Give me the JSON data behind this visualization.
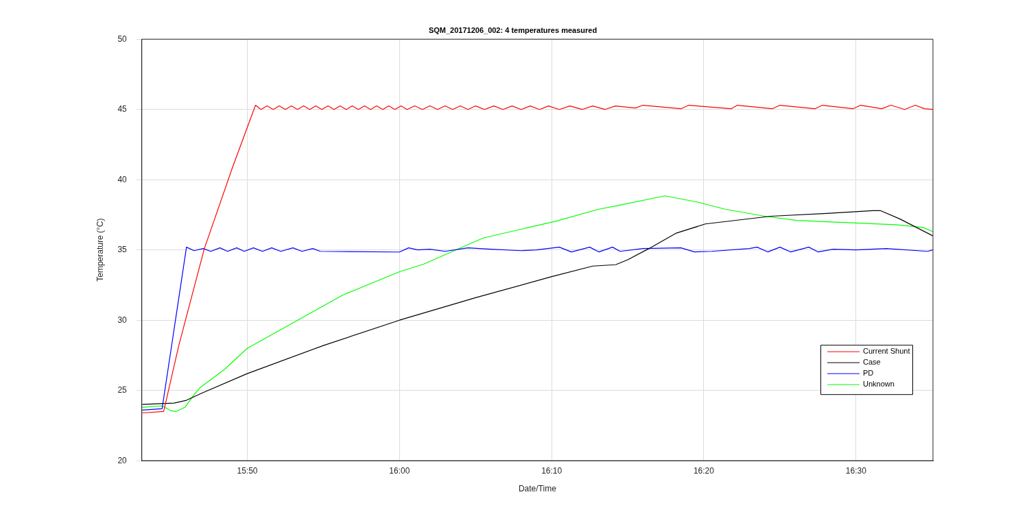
{
  "chart_data": {
    "type": "line",
    "title": "SQM_20171206_002: 4 temperatures measured",
    "xlabel": "Date/Time",
    "ylabel": "Temperature (°C)",
    "xlim": [
      15.7178,
      16.5843
    ],
    "xticks": [
      {
        "value": 15.8333,
        "label": "15:50"
      },
      {
        "value": 16,
        "label": "16:00"
      },
      {
        "value": 16.1667,
        "label": "16:10"
      },
      {
        "value": 16.3333,
        "label": "16:20"
      },
      {
        "value": 16.5,
        "label": "16:30"
      }
    ],
    "ylim": [
      20,
      50
    ],
    "yticks": [
      20,
      25,
      30,
      35,
      40,
      45,
      50
    ],
    "grid": true,
    "legend": "bottom right",
    "marker": "none",
    "line_style": "solid",
    "series": [
      {
        "name": "Current Shunt",
        "color": "#ff0000",
        "x": [
          15.7183,
          15.7417,
          15.7583,
          15.7863,
          15.8167,
          15.8423,
          15.8483,
          15.855,
          15.8617,
          15.8683,
          15.875,
          15.8817,
          15.8883,
          15.895,
          15.9017,
          15.9083,
          15.915,
          15.9217,
          15.9283,
          15.935,
          15.9417,
          15.9483,
          15.955,
          15.9617,
          15.9683,
          15.975,
          15.9817,
          15.9883,
          15.995,
          16.0017,
          16.0083,
          16.0167,
          16.025,
          16.0333,
          16.0417,
          16.05,
          16.0583,
          16.0667,
          16.075,
          16.0833,
          16.0933,
          16.1033,
          16.1133,
          16.1233,
          16.1333,
          16.1433,
          16.1533,
          16.1633,
          16.175,
          16.1867,
          16.2,
          16.2117,
          16.225,
          16.2367,
          16.2583,
          16.2667,
          16.3083,
          16.3167,
          16.3633,
          16.37,
          16.4083,
          16.4167,
          16.455,
          16.4633,
          16.4967,
          16.505,
          16.5283,
          16.5383,
          16.5533,
          16.565,
          16.575,
          16.5842
        ],
        "values": [
          23.4,
          23.5,
          28.2,
          35.1,
          40.8,
          45.3,
          45.0,
          45.25,
          45.0,
          45.25,
          45.0,
          45.25,
          45.0,
          45.25,
          45.0,
          45.25,
          45.0,
          45.25,
          45.0,
          45.25,
          45.0,
          45.25,
          45.0,
          45.25,
          45.0,
          45.25,
          45.0,
          45.25,
          45.0,
          45.25,
          45.0,
          45.25,
          45.0,
          45.25,
          45.0,
          45.25,
          45.0,
          45.25,
          45.0,
          45.25,
          45.0,
          45.25,
          45.0,
          45.25,
          45.0,
          45.25,
          45.0,
          45.25,
          45.0,
          45.25,
          45.0,
          45.25,
          45.0,
          45.25,
          45.1,
          45.3,
          45.05,
          45.3,
          45.05,
          45.3,
          45.05,
          45.3,
          45.05,
          45.3,
          45.05,
          45.3,
          45.05,
          45.3,
          45.0,
          45.3,
          45.05,
          45.0
        ]
      },
      {
        "name": "Case",
        "color": "#000000",
        "x": [
          15.7183,
          15.7533,
          15.7667,
          15.7833,
          15.8333,
          15.9167,
          16.0,
          16.0833,
          16.1667,
          16.2117,
          16.2367,
          16.25,
          16.2733,
          16.3033,
          16.335,
          16.4067,
          16.4683,
          16.5183,
          16.5267,
          16.5483,
          16.5842
        ],
        "values": [
          24.0,
          24.1,
          24.3,
          24.8,
          26.2,
          28.2,
          30.0,
          31.6,
          33.1,
          33.85,
          33.95,
          34.3,
          35.1,
          36.2,
          36.85,
          37.4,
          37.6,
          37.8,
          37.8,
          37.2,
          36.0
        ]
      },
      {
        "name": "PD",
        "color": "#0000ff",
        "x": [
          15.7183,
          15.74,
          15.7667,
          15.775,
          15.785,
          15.7933,
          15.8033,
          15.8117,
          15.8217,
          15.83,
          15.84,
          15.85,
          15.86,
          15.87,
          15.8833,
          15.8933,
          15.905,
          15.9133,
          16.0,
          16.01,
          16.02,
          16.0333,
          16.05,
          16.075,
          16.1,
          16.1333,
          16.15,
          16.175,
          16.1883,
          16.2083,
          16.2183,
          16.2333,
          16.2417,
          16.2667,
          16.3083,
          16.3233,
          16.3417,
          16.3833,
          16.3917,
          16.4033,
          16.4167,
          16.4283,
          16.4483,
          16.4583,
          16.475,
          16.5,
          16.5333,
          16.5783,
          16.5842
        ],
        "values": [
          23.6,
          23.7,
          35.2,
          34.95,
          35.1,
          34.9,
          35.15,
          34.9,
          35.15,
          34.9,
          35.15,
          34.9,
          35.15,
          34.9,
          35.15,
          34.9,
          35.1,
          34.9,
          34.85,
          35.15,
          35.0,
          35.05,
          34.9,
          35.15,
          35.05,
          34.95,
          35.0,
          35.2,
          34.86,
          35.2,
          34.86,
          35.2,
          34.9,
          35.1,
          35.15,
          34.86,
          34.9,
          35.1,
          35.2,
          34.86,
          35.2,
          34.86,
          35.2,
          34.86,
          35.05,
          35.0,
          35.1,
          34.9,
          35.0
        ]
      },
      {
        "name": "Unknown",
        "color": "#00ff00",
        "x": [
          15.7183,
          15.74,
          15.75,
          15.755,
          15.765,
          15.775,
          15.7817,
          15.8083,
          15.8333,
          15.9383,
          16.0,
          16.0267,
          16.0917,
          16.1717,
          16.2183,
          16.2383,
          16.2908,
          16.3267,
          16.3567,
          16.4,
          16.435,
          16.4683,
          16.5433,
          16.5733,
          16.5842
        ],
        "values": [
          23.8,
          23.9,
          23.55,
          23.5,
          23.8,
          24.7,
          25.2,
          26.5,
          28.0,
          31.8,
          33.45,
          34.0,
          35.85,
          37.05,
          37.9,
          38.15,
          38.85,
          38.4,
          37.9,
          37.4,
          37.1,
          37.0,
          36.8,
          36.6,
          36.3
        ]
      }
    ]
  }
}
